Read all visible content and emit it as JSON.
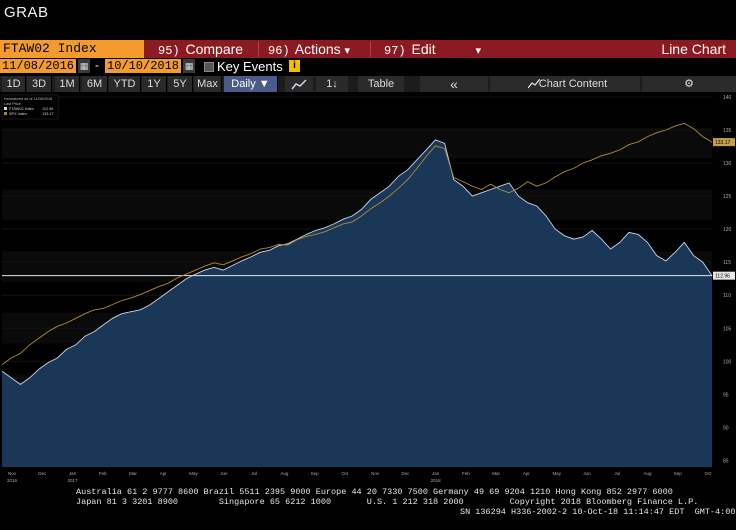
{
  "window": {
    "title": "GRAB"
  },
  "function_bar": {
    "ticker": "FTAW02 Index",
    "items": [
      {
        "num": "95)",
        "label": "Compare"
      },
      {
        "num": "96)",
        "label": "Actions",
        "caret": "▾"
      },
      {
        "num": "97)",
        "label": "Edit",
        "caret": "▾"
      }
    ],
    "right_label": "Line Chart"
  },
  "date_row": {
    "start": "11/08/2016",
    "dash": "-",
    "end": "10/10/2018",
    "calendar_icon": "calendar-icon",
    "key_events_label": "Key Events",
    "info_icon": "i"
  },
  "range_row": {
    "buttons": [
      "1D",
      "3D",
      "1M",
      "6M",
      "YTD",
      "1Y",
      "5Y",
      "Max"
    ],
    "period": "Daily ▼",
    "line_tool": "chart-line-icon",
    "bar_tool": "1↓",
    "table_label": "Table",
    "collapse": "«",
    "chart_content_label": "Chart Content",
    "settings_icon": "gear-icon"
  },
  "chart_data": {
    "type": "area",
    "legend": {
      "header": [
        "Normalized as of 11/08/2016",
        "Last Price"
      ],
      "entries": [
        {
          "name": "FTAW02 Index",
          "value": "112.96"
        },
        {
          "name": "SPX Index",
          "value": "133.17"
        }
      ]
    },
    "y_axis_side": "right",
    "ylim": [
      84,
      140
    ],
    "y_ticks": [
      "140",
      "135",
      "130",
      "125",
      "120",
      "115",
      "110",
      "105",
      "100",
      "95",
      "90",
      "85"
    ],
    "x_tick_labels": [
      {
        "label": "Nov",
        "sub": "2016"
      },
      {
        "label": "Dec",
        "sub": ""
      },
      {
        "label": "Jan",
        "sub": "2017"
      },
      {
        "label": "Feb",
        "sub": ""
      },
      {
        "label": "Mar",
        "sub": ""
      },
      {
        "label": "Apr",
        "sub": ""
      },
      {
        "label": "May",
        "sub": ""
      },
      {
        "label": "Jun",
        "sub": ""
      },
      {
        "label": "Jul",
        "sub": ""
      },
      {
        "label": "Aug",
        "sub": ""
      },
      {
        "label": "Sep",
        "sub": ""
      },
      {
        "label": "Oct",
        "sub": ""
      },
      {
        "label": "Nov",
        "sub": ""
      },
      {
        "label": "Dec",
        "sub": ""
      },
      {
        "label": "Jan",
        "sub": "2018"
      },
      {
        "label": "Feb",
        "sub": ""
      },
      {
        "label": "Mar",
        "sub": ""
      },
      {
        "label": "Apr",
        "sub": ""
      },
      {
        "label": "May",
        "sub": ""
      },
      {
        "label": "Jun",
        "sub": ""
      },
      {
        "label": "Jul",
        "sub": ""
      },
      {
        "label": "Aug",
        "sub": ""
      },
      {
        "label": "Sep",
        "sub": ""
      },
      {
        "label": "Oct",
        "sub": ""
      }
    ],
    "series": [
      {
        "name": "FTAW02 Index",
        "color": "#c9d6e8",
        "fill": "#1b3a5c",
        "last": "112.96",
        "values": [
          98.5,
          97.5,
          96.5,
          97.5,
          98.8,
          99.8,
          100.5,
          101.8,
          102.5,
          103.8,
          104.5,
          105.5,
          106.5,
          107.2,
          107.5,
          107.8,
          108.5,
          109.5,
          110.5,
          111.5,
          112.5,
          113.2,
          113.8,
          114.2,
          113.8,
          114.5,
          115.2,
          115.8,
          116.5,
          116.8,
          117.5,
          117.8,
          118.5,
          119.2,
          119.8,
          120.2,
          120.8,
          121.5,
          122.0,
          123.0,
          124.5,
          125.5,
          126.5,
          128.0,
          129.0,
          130.5,
          132.0,
          133.5,
          133.0,
          127.5,
          126.5,
          125.0,
          125.5,
          126.0,
          126.5,
          127.0,
          125.0,
          124.0,
          123.5,
          122.0,
          120.0,
          119.0,
          118.5,
          118.8,
          119.8,
          118.5,
          117.0,
          118.0,
          119.5,
          119.2,
          118.0,
          116.0,
          115.2,
          116.5,
          118.0,
          116.0,
          115.0,
          112.96
        ]
      },
      {
        "name": "SPX Index",
        "color": "#b08a3a",
        "last": "133.17",
        "values": [
          99.5,
          100.5,
          101.2,
          102.5,
          103.5,
          104.5,
          105.3,
          105.8,
          106.5,
          107.2,
          107.8,
          108.0,
          108.6,
          109.2,
          109.6,
          110.1,
          110.7,
          111.3,
          111.8,
          112.6,
          113.2,
          113.8,
          114.4,
          114.9,
          114.6,
          115.2,
          115.8,
          116.3,
          117.0,
          117.2,
          117.7,
          117.6,
          118.4,
          118.9,
          119.2,
          119.6,
          120.2,
          120.8,
          121.1,
          122.0,
          123.1,
          124.0,
          125.0,
          126.2,
          127.5,
          129.2,
          131.0,
          132.6,
          132.2,
          127.8,
          127.2,
          126.5,
          126.0,
          126.8,
          126.0,
          125.5,
          126.2,
          127.2,
          126.5,
          127.0,
          127.9,
          128.7,
          129.2,
          130.0,
          130.5,
          131.1,
          131.5,
          132.0,
          132.8,
          133.2,
          134.0,
          134.6,
          135.0,
          135.6,
          136.0,
          135.2,
          134.0,
          133.17
        ]
      }
    ],
    "reference_line": {
      "value": 112.96,
      "color": "#dfe6ee"
    },
    "last_price_tags": [
      {
        "value": "133.17",
        "bg": "#c6a04a"
      },
      {
        "value": "112.96",
        "bg": "#e8e8e8"
      }
    ]
  },
  "footer": {
    "line1": "Australia 61 2 9777 8600 Brazil 5511 2395 9000 Europe 44 20 7330 7500 Germany 49 69 9204 1210 Hong Kong 852 2977 6000",
    "line2": "Japan 81 3 3201 8900        Singapore 65 6212 1000       U.S. 1 212 318 2000         Copyright 2018 Bloomberg Finance L.P.",
    "line3": "SN 136294 H336-2002-2 10-Oct-18 11:14:47 EDT  GMT-4:00"
  }
}
